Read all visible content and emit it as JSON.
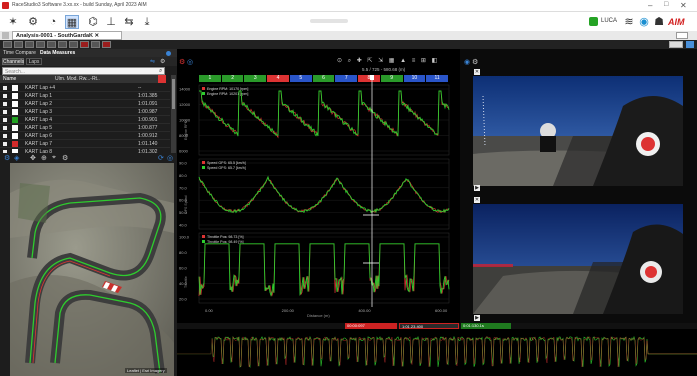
{
  "window": {
    "title": "RaceStudio3 Software 3.xx.xx - build Sunday, April 2023 AIM",
    "user": "LUCA"
  },
  "doc_tab": {
    "label": "Analysis-0001 - SouthGardaK"
  },
  "left_tabs": [
    "Time Compare",
    "Data Measures"
  ],
  "left_subtabs": [
    "Channels",
    "Laps"
  ],
  "channel_header": {
    "search_placeholder": "Search...",
    "col_name": "Name",
    "col_val": "Val.",
    "col_unit": "Ulm. Mod. Rw...-Rt.."
  },
  "channels": [
    {
      "name": "KART Lap +4",
      "value": "--",
      "color": "#ffffff"
    },
    {
      "name": "KART Lap 1",
      "value": "1:01.385",
      "color": "#ffffff"
    },
    {
      "name": "KART Lap 2",
      "value": "1:01.091",
      "color": "#ffffff"
    },
    {
      "name": "KART Lap 3",
      "value": "1:00.987",
      "color": "#ffffff"
    },
    {
      "name": "KART Lap 4",
      "value": "1:00.901",
      "color": "#23a323"
    },
    {
      "name": "KART Lap 5",
      "value": "1:00.877",
      "color": "#ffffff"
    },
    {
      "name": "KART Lap 6",
      "value": "1:00.912",
      "color": "#ffffff"
    },
    {
      "name": "KART Lap 7",
      "value": "1:01.140",
      "color": "#d32a2a"
    },
    {
      "name": "KART Lap 8",
      "value": "1:01.302",
      "color": "#ffffff"
    }
  ],
  "map": {
    "credit": "Leaflet | Esri Imagery"
  },
  "graph": {
    "distance_readout": "5.5 / 725 - 580.68 (m)",
    "segments": [
      "1",
      "2",
      "3",
      "4",
      "5",
      "6",
      "7",
      "8",
      "9",
      "10",
      "11"
    ],
    "segment_colors": [
      "#2a9a2a",
      "#2a9a2a",
      "#2a9a2a",
      "#d33",
      "#2a55c9",
      "#2a9a2a",
      "#2a55c9",
      "#d33",
      "#2a9a2a",
      "#2a55c9",
      "#2a55c9"
    ],
    "panel1": {
      "legend": [
        "Engine RPM: 10170 [rpm]",
        "Engine RPM: 10201 [rpm]"
      ],
      "yticks": [
        "14000",
        "12000",
        "10000",
        "8000",
        "6000"
      ],
      "ylabel": "Engine RPM"
    },
    "panel2": {
      "legend": [
        "Speed GPS: 65.5 [km/h]",
        "Speed GPS: 65.7 [km/h]"
      ],
      "yticks": [
        "90.0",
        "80.0",
        "70.0",
        "60.0",
        "50.0",
        "40.0"
      ],
      "ylabel": "GPS Speed"
    },
    "panel3": {
      "legend": [
        "Throttle Pos: 98.73 [%]",
        "Throttle Pos: 98.49 [%]"
      ],
      "yticks": [
        "100.0",
        "80.0",
        "60.0",
        "40.0",
        "20.0"
      ],
      "ylabel": "Throttle"
    },
    "xticks": [
      "0.00",
      "200.00",
      "400.00",
      "600.00"
    ],
    "xlabel": "Distance (m)"
  },
  "bottom": {
    "cursor_a": "00:00:097",
    "cursor_b": "1:01.23.400",
    "cursor_c": "0:01:130.1s"
  },
  "status": {
    "colors": {
      "green": "#3bd13b",
      "red": "#e03030",
      "blue": "#2a55c9",
      "accent": "#d21f1f"
    }
  }
}
